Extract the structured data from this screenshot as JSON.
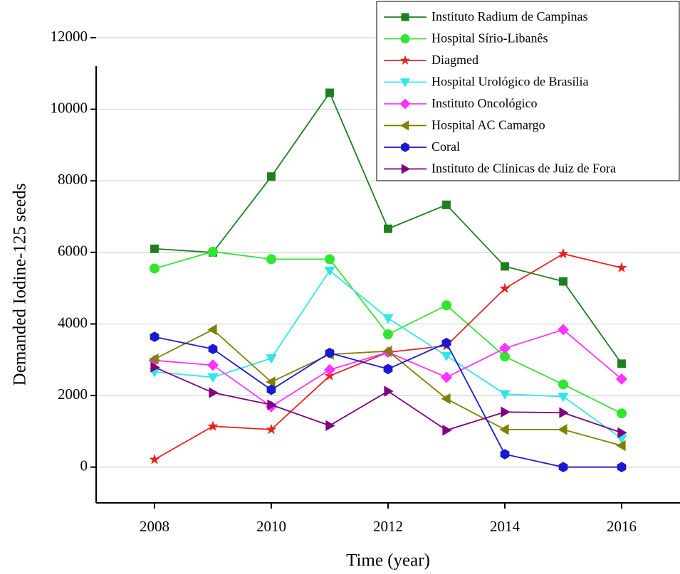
{
  "chart_data": {
    "type": "line",
    "xlabel": "Time (year)",
    "ylabel": "Demanded Iodine-125 seeds",
    "x": [
      2008,
      2009,
      2010,
      2011,
      2012,
      2013,
      2014,
      2015,
      2016
    ],
    "xlim": [
      2007,
      2017
    ],
    "xticks": [
      2008,
      2010,
      2012,
      2014,
      2016
    ],
    "ylim": [
      -1000,
      12000
    ],
    "yticks": [
      0,
      2000,
      4000,
      6000,
      8000,
      10000,
      12000
    ],
    "grid": true,
    "legend": "upper right",
    "series": [
      {
        "name": "Instituto Radium de Campinas",
        "color": "#1e7f1e",
        "marker": "square",
        "values": [
          6100,
          6000,
          8120,
          10460,
          6660,
          7330,
          5610,
          5190,
          2890
        ]
      },
      {
        "name": "Hospital Sírio-Libanês",
        "color": "#33e533",
        "marker": "circle",
        "values": [
          5550,
          6020,
          5810,
          5810,
          3710,
          4520,
          3090,
          2310,
          1500
        ]
      },
      {
        "name": "Diagmed",
        "color": "#e52222",
        "marker": "star",
        "values": [
          210,
          1140,
          1050,
          2550,
          3210,
          3390,
          4990,
          5960,
          5570
        ]
      },
      {
        "name": "Hospital Urológico de Brasília",
        "color": "#33e5e5",
        "marker": "triangle-down",
        "values": [
          2660,
          2510,
          3040,
          5490,
          4160,
          3110,
          2040,
          1970,
          800
        ]
      },
      {
        "name": "Instituto Oncológico",
        "color": "#ff33ff",
        "marker": "diamond",
        "values": [
          2980,
          2850,
          1690,
          2720,
          3210,
          2510,
          3320,
          3840,
          2460
        ]
      },
      {
        "name": "Hospital AC Camargo",
        "color": "#808000",
        "marker": "triangle-left",
        "values": [
          3020,
          3840,
          2380,
          3150,
          3240,
          1910,
          1050,
          1050,
          600
        ]
      },
      {
        "name": "Coral",
        "color": "#1a1acc",
        "marker": "hexagon",
        "values": [
          3640,
          3300,
          2160,
          3190,
          2740,
          3470,
          360,
          0,
          0
        ]
      },
      {
        "name": "Instituto de Clínicas de Juiz de Fora",
        "color": "#800080",
        "marker": "triangle-right",
        "values": [
          2790,
          2080,
          1740,
          1160,
          2120,
          1030,
          1540,
          1520,
          960
        ]
      }
    ]
  }
}
